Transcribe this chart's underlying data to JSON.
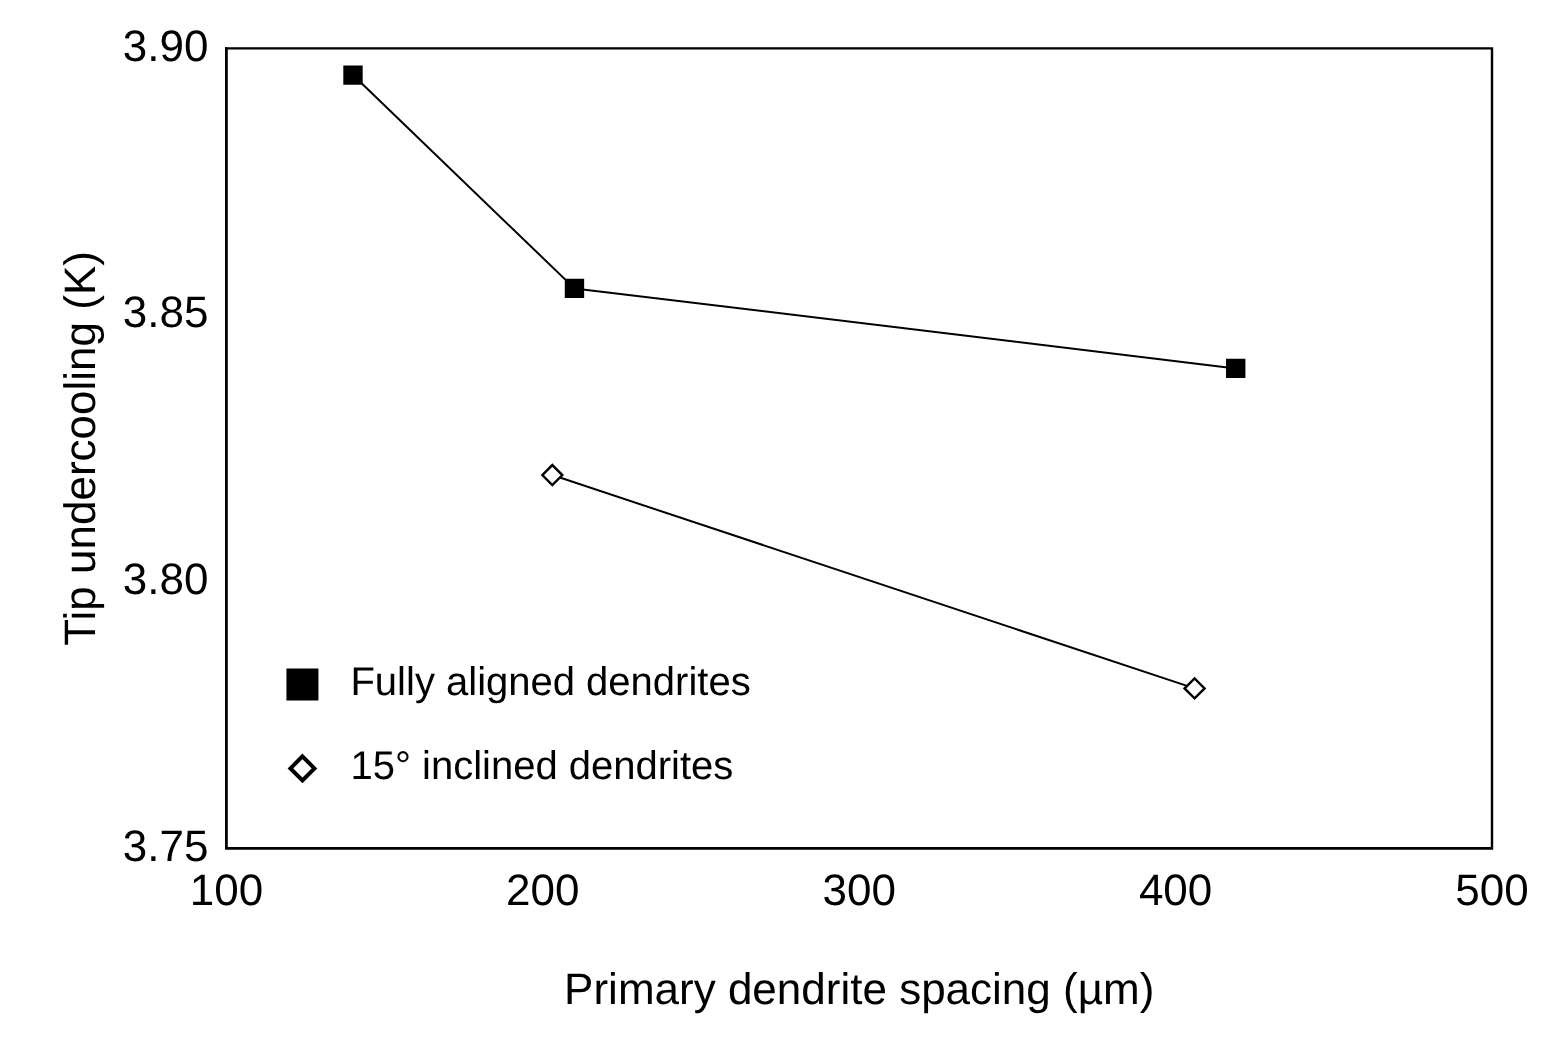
{
  "chart_data": {
    "type": "line",
    "xlabel": "Primary dendrite spacing (µm)",
    "ylabel": "Tip undercooling (K)",
    "xlim": [
      100,
      500
    ],
    "xticks": [
      100,
      200,
      300,
      400,
      500
    ],
    "ylim": [
      3.75,
      3.9
    ],
    "yticks": [
      {
        "value": 3.75,
        "label": "3.75"
      },
      {
        "value": 3.8,
        "label": "3.80"
      },
      {
        "value": 3.85,
        "label": "3.85"
      },
      {
        "value": 3.9,
        "label": "3.90"
      }
    ],
    "grid": false,
    "legend": "bottom left",
    "series": [
      {
        "name": "Fully aligned dendrites",
        "color": "#000000",
        "marker": "square",
        "x": [
          140,
          210,
          419
        ],
        "values": [
          3.895,
          3.855,
          3.84
        ]
      },
      {
        "name": "15° inclined dendrites",
        "color": "#000000",
        "marker": "diamond",
        "x": [
          203,
          406
        ],
        "values": [
          3.82,
          3.78
        ]
      }
    ]
  }
}
